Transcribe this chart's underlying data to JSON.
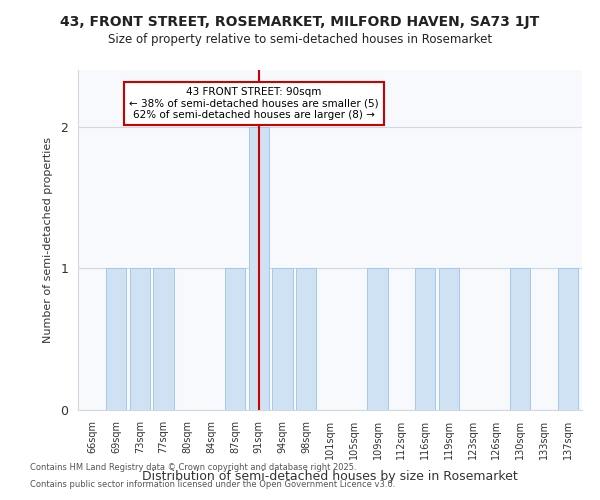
{
  "title_line1": "43, FRONT STREET, ROSEMARKET, MILFORD HAVEN, SA73 1JT",
  "title_line2": "Size of property relative to semi-detached houses in Rosemarket",
  "xlabel": "Distribution of semi-detached houses by size in Rosemarket",
  "ylabel": "Number of semi-detached properties",
  "categories": [
    "66sqm",
    "69sqm",
    "73sqm",
    "77sqm",
    "80sqm",
    "84sqm",
    "87sqm",
    "91sqm",
    "94sqm",
    "98sqm",
    "101sqm",
    "105sqm",
    "109sqm",
    "112sqm",
    "116sqm",
    "119sqm",
    "123sqm",
    "126sqm",
    "130sqm",
    "133sqm",
    "137sqm"
  ],
  "values": [
    0,
    1,
    1,
    1,
    0,
    0,
    1,
    2,
    1,
    1,
    0,
    0,
    1,
    0,
    1,
    1,
    0,
    0,
    1,
    0,
    1
  ],
  "subject_bin_index": 7,
  "subject_label": "43 FRONT STREET: 90sqm",
  "pct_smaller": 38,
  "count_smaller": 5,
  "pct_larger": 62,
  "count_larger": 8,
  "bar_color": "#cfe2f3",
  "bar_edge_color": "#a8c8e8",
  "subject_line_color": "#cc0000",
  "background_color": "#ffffff",
  "plot_bg_color": "#f7f9fc",
  "annotation_box_color": "#ffffff",
  "annotation_box_edge": "#cc0000",
  "grid_color": "#d0d8e4",
  "yticks": [
    0,
    1,
    2
  ],
  "ylim": [
    0,
    2.4
  ],
  "footer_line1": "Contains HM Land Registry data © Crown copyright and database right 2025.",
  "footer_line2": "Contains public sector information licensed under the Open Government Licence v3.0."
}
